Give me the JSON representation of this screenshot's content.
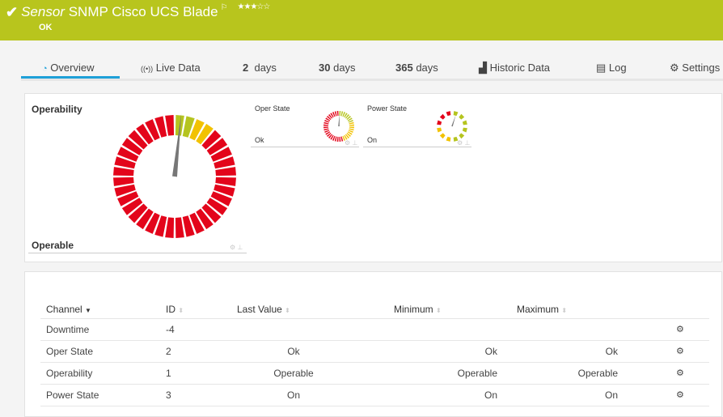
{
  "header": {
    "title_prefix": "Sensor",
    "title": "SNMP Cisco UCS Blade",
    "status": "OK",
    "rating": "★★★☆☆",
    "bg_color": "#b8c51d"
  },
  "tabs": [
    {
      "icon": "gauge-icon",
      "glyph": "◔",
      "label": "Overview",
      "active": true
    },
    {
      "icon": "live-data-icon",
      "glyph": "((•))",
      "label": "Live Data"
    },
    {
      "num": "2",
      "label": "days"
    },
    {
      "num": "30",
      "label": "days"
    },
    {
      "num": "365",
      "label": "days"
    },
    {
      "icon": "historic-data-icon",
      "glyph": "▟",
      "label": "Historic Data"
    },
    {
      "icon": "log-icon",
      "glyph": "▤",
      "label": "Log"
    },
    {
      "icon": "gear-icon",
      "glyph": "⚙",
      "label": "Settings"
    }
  ],
  "gauges": {
    "main": {
      "label": "Operability",
      "value": "Operable"
    },
    "oper": {
      "label": "Oper State",
      "value": "Ok"
    },
    "power": {
      "label": "Power State",
      "value": "On"
    },
    "colors": {
      "red": "#e3051b",
      "yellow": "#f2c200",
      "green": "#b5c41f",
      "needle": "#777777"
    }
  },
  "table": {
    "headers": [
      "Channel",
      "ID",
      "Last Value",
      "Minimum",
      "Maximum"
    ],
    "rows": [
      {
        "channel": "Downtime",
        "id": "-4",
        "last": "",
        "min": "",
        "max": ""
      },
      {
        "channel": "Oper State",
        "id": "2",
        "last": "Ok",
        "min": "Ok",
        "max": "Ok"
      },
      {
        "channel": "Operability",
        "id": "1",
        "last": "Operable",
        "min": "Operable",
        "max": "Operable"
      },
      {
        "channel": "Power State",
        "id": "3",
        "last": "On",
        "min": "On",
        "max": "On"
      }
    ]
  }
}
